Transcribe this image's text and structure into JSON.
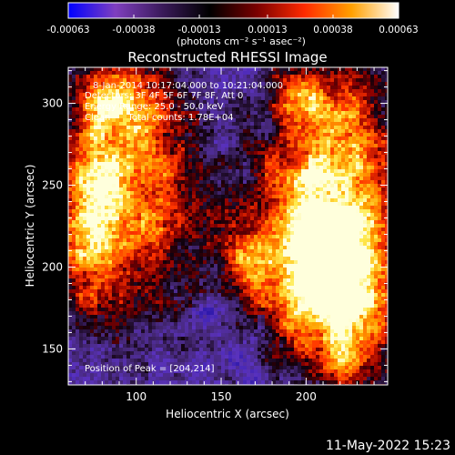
{
  "colorbar": {
    "tick_labels": [
      "-0.00063",
      "-0.00038",
      "-0.00013",
      "0.00013",
      "0.00038",
      "0.00063"
    ],
    "unit_label": "(photons cm⁻² s⁻¹ asec⁻²)",
    "range": [
      -0.00063,
      0.00063
    ],
    "colors": [
      "#0000ff",
      "#7f3fbf",
      "#3a1a5a",
      "#000000",
      "#7a0000",
      "#ff2a00",
      "#ffa000",
      "#ffffff"
    ]
  },
  "chart_data": {
    "type": "heatmap",
    "title": "Reconstructed RHESSI Image",
    "xlabel": "Heliocentric X (arcsec)",
    "ylabel": "Heliocentric Y (arcsec)",
    "xlim": [
      60,
      248
    ],
    "ylim": [
      128,
      322
    ],
    "xticks": [
      100,
      150,
      200
    ],
    "yticks": [
      150,
      200,
      250,
      300
    ],
    "annotations": [
      "8-Jan-2014 10:17:04.000 to 10:21:04.000",
      "Detectors: 3F 4F 5F 6F 7F 8F, Att 0",
      "Energy Range: 25.0 - 50.0 keV",
      "Clean      Total counts: 1.78E+04"
    ],
    "peak_label": "Position of Peak = [204,214]",
    "peak": [
      204,
      214
    ],
    "sources": [
      {
        "x": 100,
        "y": 255,
        "sx": 28,
        "sy": 60,
        "a": 0.8
      },
      {
        "x": 72,
        "y": 225,
        "sx": 14,
        "sy": 40,
        "a": 0.65
      },
      {
        "x": 205,
        "y": 213,
        "sx": 30,
        "sy": 42,
        "a": 1.0
      },
      {
        "x": 225,
        "y": 170,
        "sx": 22,
        "sy": 38,
        "a": 0.7
      },
      {
        "x": 225,
        "y": 280,
        "sx": 26,
        "sy": 40,
        "a": 0.55
      },
      {
        "x": 195,
        "y": 305,
        "sx": 16,
        "sy": 14,
        "a": 0.45
      },
      {
        "x": 165,
        "y": 200,
        "sx": 10,
        "sy": 16,
        "a": 0.35
      },
      {
        "x": 85,
        "y": 300,
        "sx": 14,
        "sy": 14,
        "a": 0.45
      }
    ]
  },
  "timestamp": "11-May-2022 15:23"
}
